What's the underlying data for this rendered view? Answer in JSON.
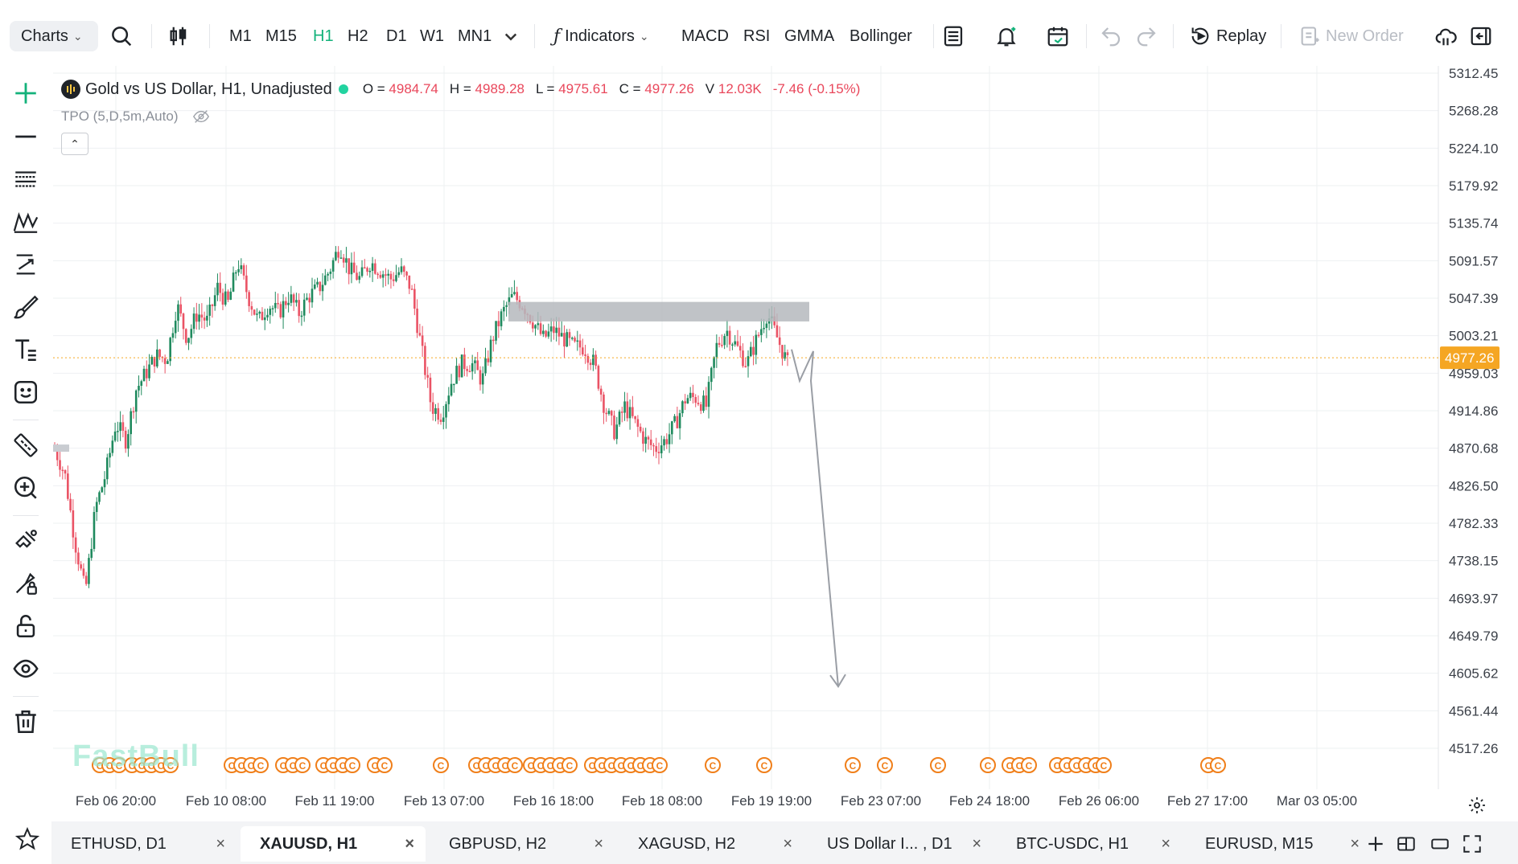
{
  "toolbar": {
    "charts_label": "Charts",
    "timeframes": [
      "M1",
      "M15",
      "H1",
      "H2",
      "D1",
      "W1",
      "MN1"
    ],
    "active_timeframe": "H1",
    "indicators_label": "Indicators",
    "indicator_shortcuts": [
      "MACD",
      "RSI",
      "GMMA",
      "Bollinger"
    ],
    "replay_label": "Replay",
    "new_order_label": "New Order"
  },
  "legend": {
    "title": "Gold vs US Dollar, H1, Unadjusted",
    "open_label": "O =",
    "open": "4984.74",
    "high_label": "H =",
    "high": "4989.28",
    "low_label": "L =",
    "low": "4975.61",
    "close_label": "C =",
    "close": "4977.26",
    "volume_label": "V",
    "volume": "12.03K",
    "change": "-7.46 (-0.15%)",
    "indicator": "TPO (5,D,5m,Auto)"
  },
  "watermark": "FastBull",
  "colors": {
    "up": "#1f8a5e",
    "down": "#ea5365",
    "accent": "#13b27a",
    "price_tag": "#f5a623",
    "event_marker": "#f07f1a",
    "zone": "#b5b8bd"
  },
  "chart_data": {
    "type": "candlestick",
    "symbol": "XAUUSD",
    "timeframe": "H1",
    "y_ticks": [
      "5312.45",
      "5268.28",
      "5224.10",
      "5179.92",
      "5135.74",
      "5091.57",
      "5047.39",
      "5003.21",
      "4959.03",
      "4914.86",
      "4870.68",
      "4826.50",
      "4782.33",
      "4738.15",
      "4693.97",
      "4649.79",
      "4605.62",
      "4561.44",
      "4517.26"
    ],
    "x_ticks": [
      "Feb 06 20:00",
      "Feb 10 08:00",
      "Feb 11 19:00",
      "Feb 13 07:00",
      "Feb 16 18:00",
      "Feb 18 08:00",
      "Feb 19 19:00",
      "Feb 23 07:00",
      "Feb 24 18:00",
      "Feb 26 06:00",
      "Feb 27 17:00",
      "Mar 03 05:00"
    ],
    "ylim": [
      4517.26,
      5312.45
    ],
    "last_price": "4977.26",
    "close_path": [
      4870,
      4840,
      4760,
      4700,
      4800,
      4840,
      4900,
      4880,
      4940,
      4960,
      4980,
      4975,
      5040,
      5000,
      5030,
      5020,
      5060,
      5040,
      5090,
      5050,
      5020,
      5040,
      5030,
      5050,
      5030,
      5050,
      5060,
      5080,
      5110,
      5080,
      5070,
      5090,
      5080,
      5070,
      5080,
      5060,
      4990,
      4920,
      4910,
      4950,
      4970,
      4970,
      4950,
      5000,
      5030,
      5050,
      5040,
      5020,
      5000,
      5010,
      5000,
      4990,
      4990,
      4970,
      4920,
      4890,
      4920,
      4900,
      4880,
      4870,
      4880,
      4900,
      4930,
      4930,
      4920,
      4990,
      5010,
      4990,
      4970,
      5000,
      5030,
      5000,
      4970
    ],
    "resistance_zone": [
      5020,
      5043
    ],
    "projection": [
      4987,
      4950,
      4985,
      4950,
      4590
    ],
    "event_markers_label": "C"
  },
  "tabs": [
    {
      "label": "ETHUSD, D1",
      "active": false
    },
    {
      "label": "XAUUSD, H1",
      "active": true
    },
    {
      "label": "GBPUSD, H2",
      "active": false
    },
    {
      "label": "XAGUSD, H2",
      "active": false
    },
    {
      "label": "US Dollar I... , D1",
      "active": false
    },
    {
      "label": "BTC-USDC, H1",
      "active": false
    },
    {
      "label": "EURUSD, M15",
      "active": false
    }
  ]
}
